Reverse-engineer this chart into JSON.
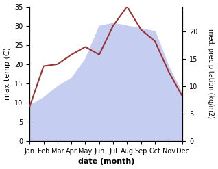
{
  "months": [
    "Jan",
    "Feb",
    "Mar",
    "Apr",
    "May",
    "Jun",
    "Jul",
    "Aug",
    "Sep",
    "Oct",
    "Nov",
    "Dec"
  ],
  "month_x": [
    1,
    2,
    3,
    4,
    5,
    6,
    7,
    8,
    9,
    10,
    11,
    12
  ],
  "temp_x": [
    1,
    2,
    3,
    4,
    5,
    6,
    7,
    8,
    9,
    10,
    11,
    12
  ],
  "temp_y": [
    9.0,
    19.5,
    20.0,
    22.5,
    24.5,
    22.5,
    30.0,
    35.0,
    29.0,
    26.0,
    18.0,
    11.5
  ],
  "precip_x": [
    1,
    2,
    3,
    4,
    5,
    6,
    7,
    8,
    9,
    10,
    11,
    12
  ],
  "precip_y": [
    6.5,
    8.0,
    10.0,
    11.5,
    15.0,
    21.0,
    21.5,
    21.0,
    20.5,
    20.0,
    13.5,
    8.5
  ],
  "temp_color": "#993333",
  "precip_fill_color": "#c5cdf0",
  "xlabel": "date (month)",
  "ylabel_left": "max temp (C)",
  "ylabel_right": "med. precipitation (kg/m2)",
  "ylim_left": [
    0,
    35
  ],
  "ylim_right": [
    0,
    24.5
  ],
  "yticks_left": [
    0,
    5,
    10,
    15,
    20,
    25,
    30,
    35
  ],
  "yticks_right": [
    0,
    5,
    10,
    15,
    20
  ],
  "bg_color": "#ffffff"
}
